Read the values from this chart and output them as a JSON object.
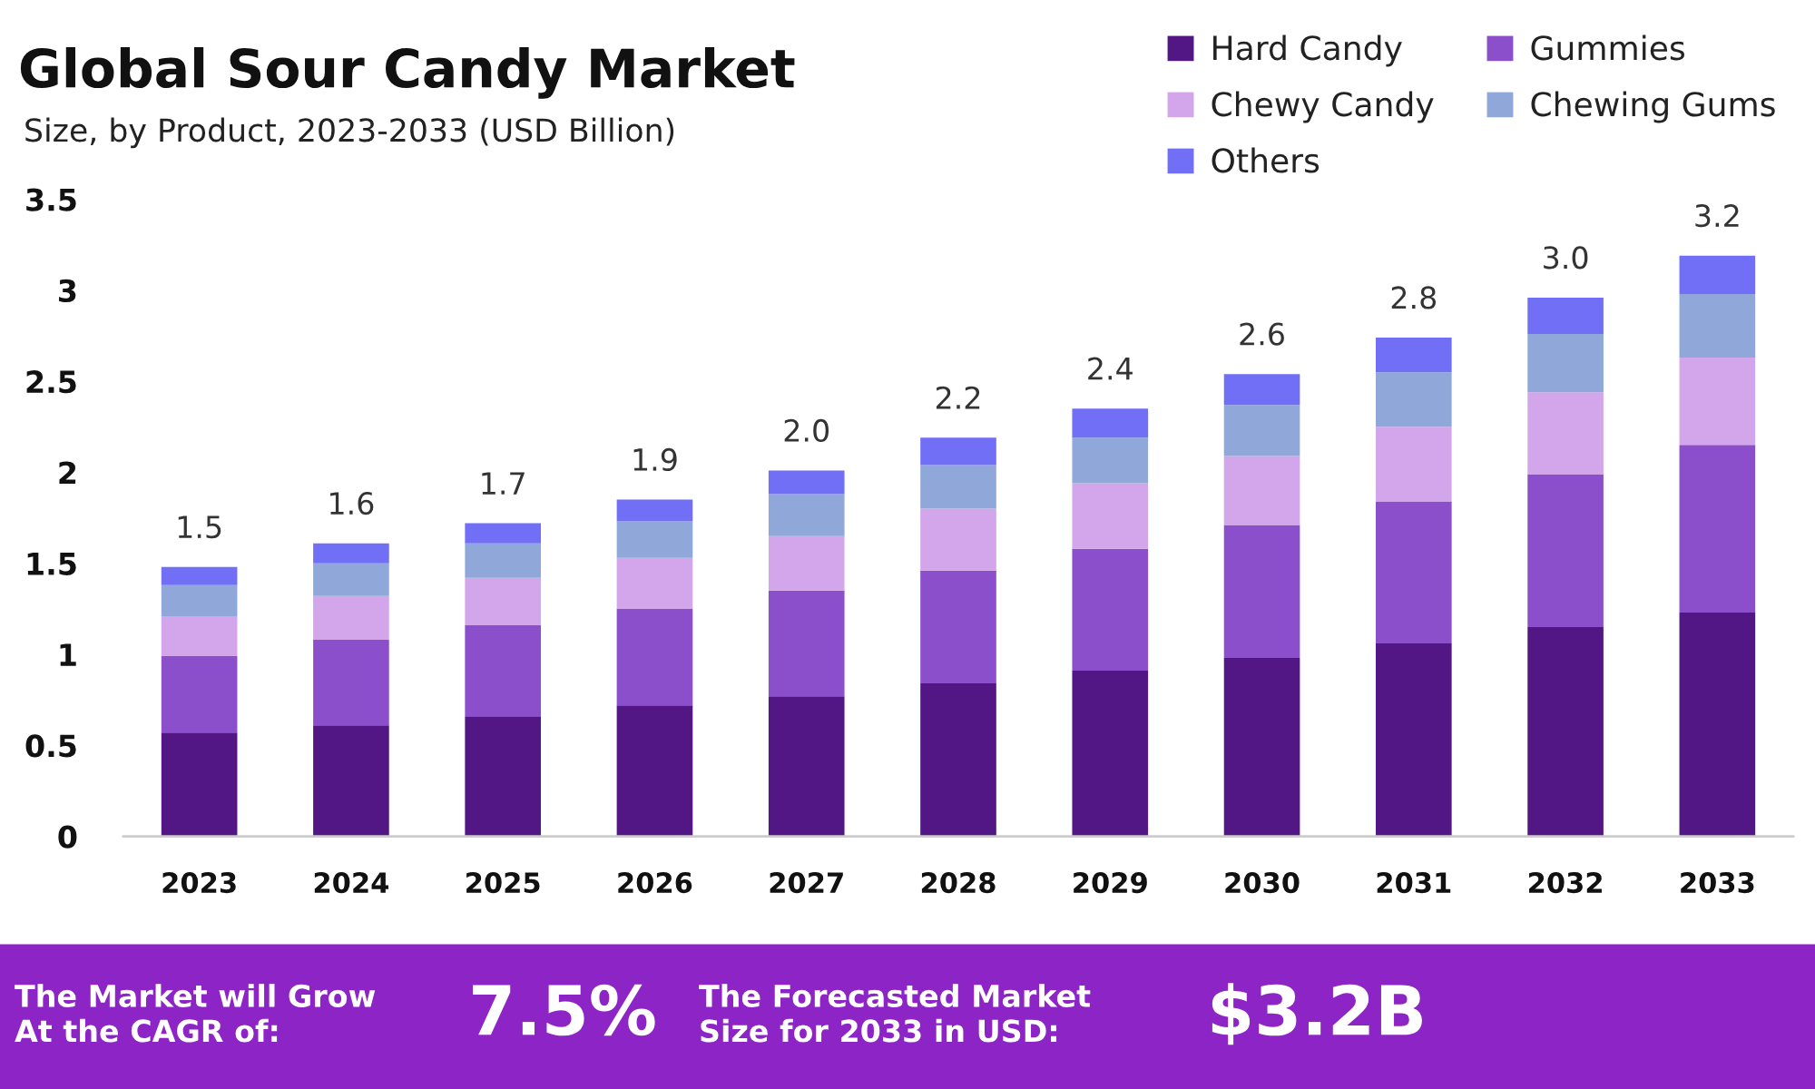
{
  "chart_data": {
    "type": "bar",
    "title": "Global Sour Candy Market",
    "subtitle": "Size, by Product, 2023-2033 (USD Billion)",
    "categories": [
      "2023",
      "2024",
      "2025",
      "2026",
      "2027",
      "2028",
      "2029",
      "2030",
      "2031",
      "2032",
      "2033"
    ],
    "stacked": true,
    "series": [
      {
        "name": "Hard Candy",
        "color": "#521785",
        "values": [
          0.57,
          0.61,
          0.66,
          0.72,
          0.77,
          0.84,
          0.91,
          0.98,
          1.06,
          1.15,
          1.23
        ]
      },
      {
        "name": "Gummies",
        "color": "#8c4fcc",
        "values": [
          0.42,
          0.47,
          0.5,
          0.53,
          0.58,
          0.62,
          0.67,
          0.73,
          0.78,
          0.84,
          0.92
        ]
      },
      {
        "name": "Chewy Candy",
        "color": "#d3a5ea",
        "values": [
          0.22,
          0.24,
          0.26,
          0.28,
          0.3,
          0.34,
          0.36,
          0.38,
          0.41,
          0.45,
          0.48
        ]
      },
      {
        "name": "Chewing Gums",
        "color": "#8fa8d9",
        "values": [
          0.17,
          0.18,
          0.19,
          0.2,
          0.23,
          0.24,
          0.25,
          0.28,
          0.3,
          0.32,
          0.35
        ]
      },
      {
        "name": "Others",
        "color": "#726ff7",
        "values": [
          0.1,
          0.11,
          0.11,
          0.12,
          0.13,
          0.15,
          0.16,
          0.17,
          0.19,
          0.2,
          0.21
        ]
      }
    ],
    "ylim": [
      0,
      3.5
    ],
    "yticks": [
      0,
      0.5,
      1,
      1.5,
      2,
      2.5,
      3,
      3.5
    ],
    "totals": [
      "1.5",
      "1.6",
      "1.7",
      "1.9",
      "2.0",
      "2.2",
      "2.4",
      "2.6",
      "2.8",
      "3.0",
      "3.2"
    ],
    "legend": "top right",
    "annotations": [
      "The Market will Grow\nAt the CAGR of:",
      "7.5%",
      "The Forecasted Market\nSize for 2033 in USD:",
      "$3.2B"
    ]
  }
}
